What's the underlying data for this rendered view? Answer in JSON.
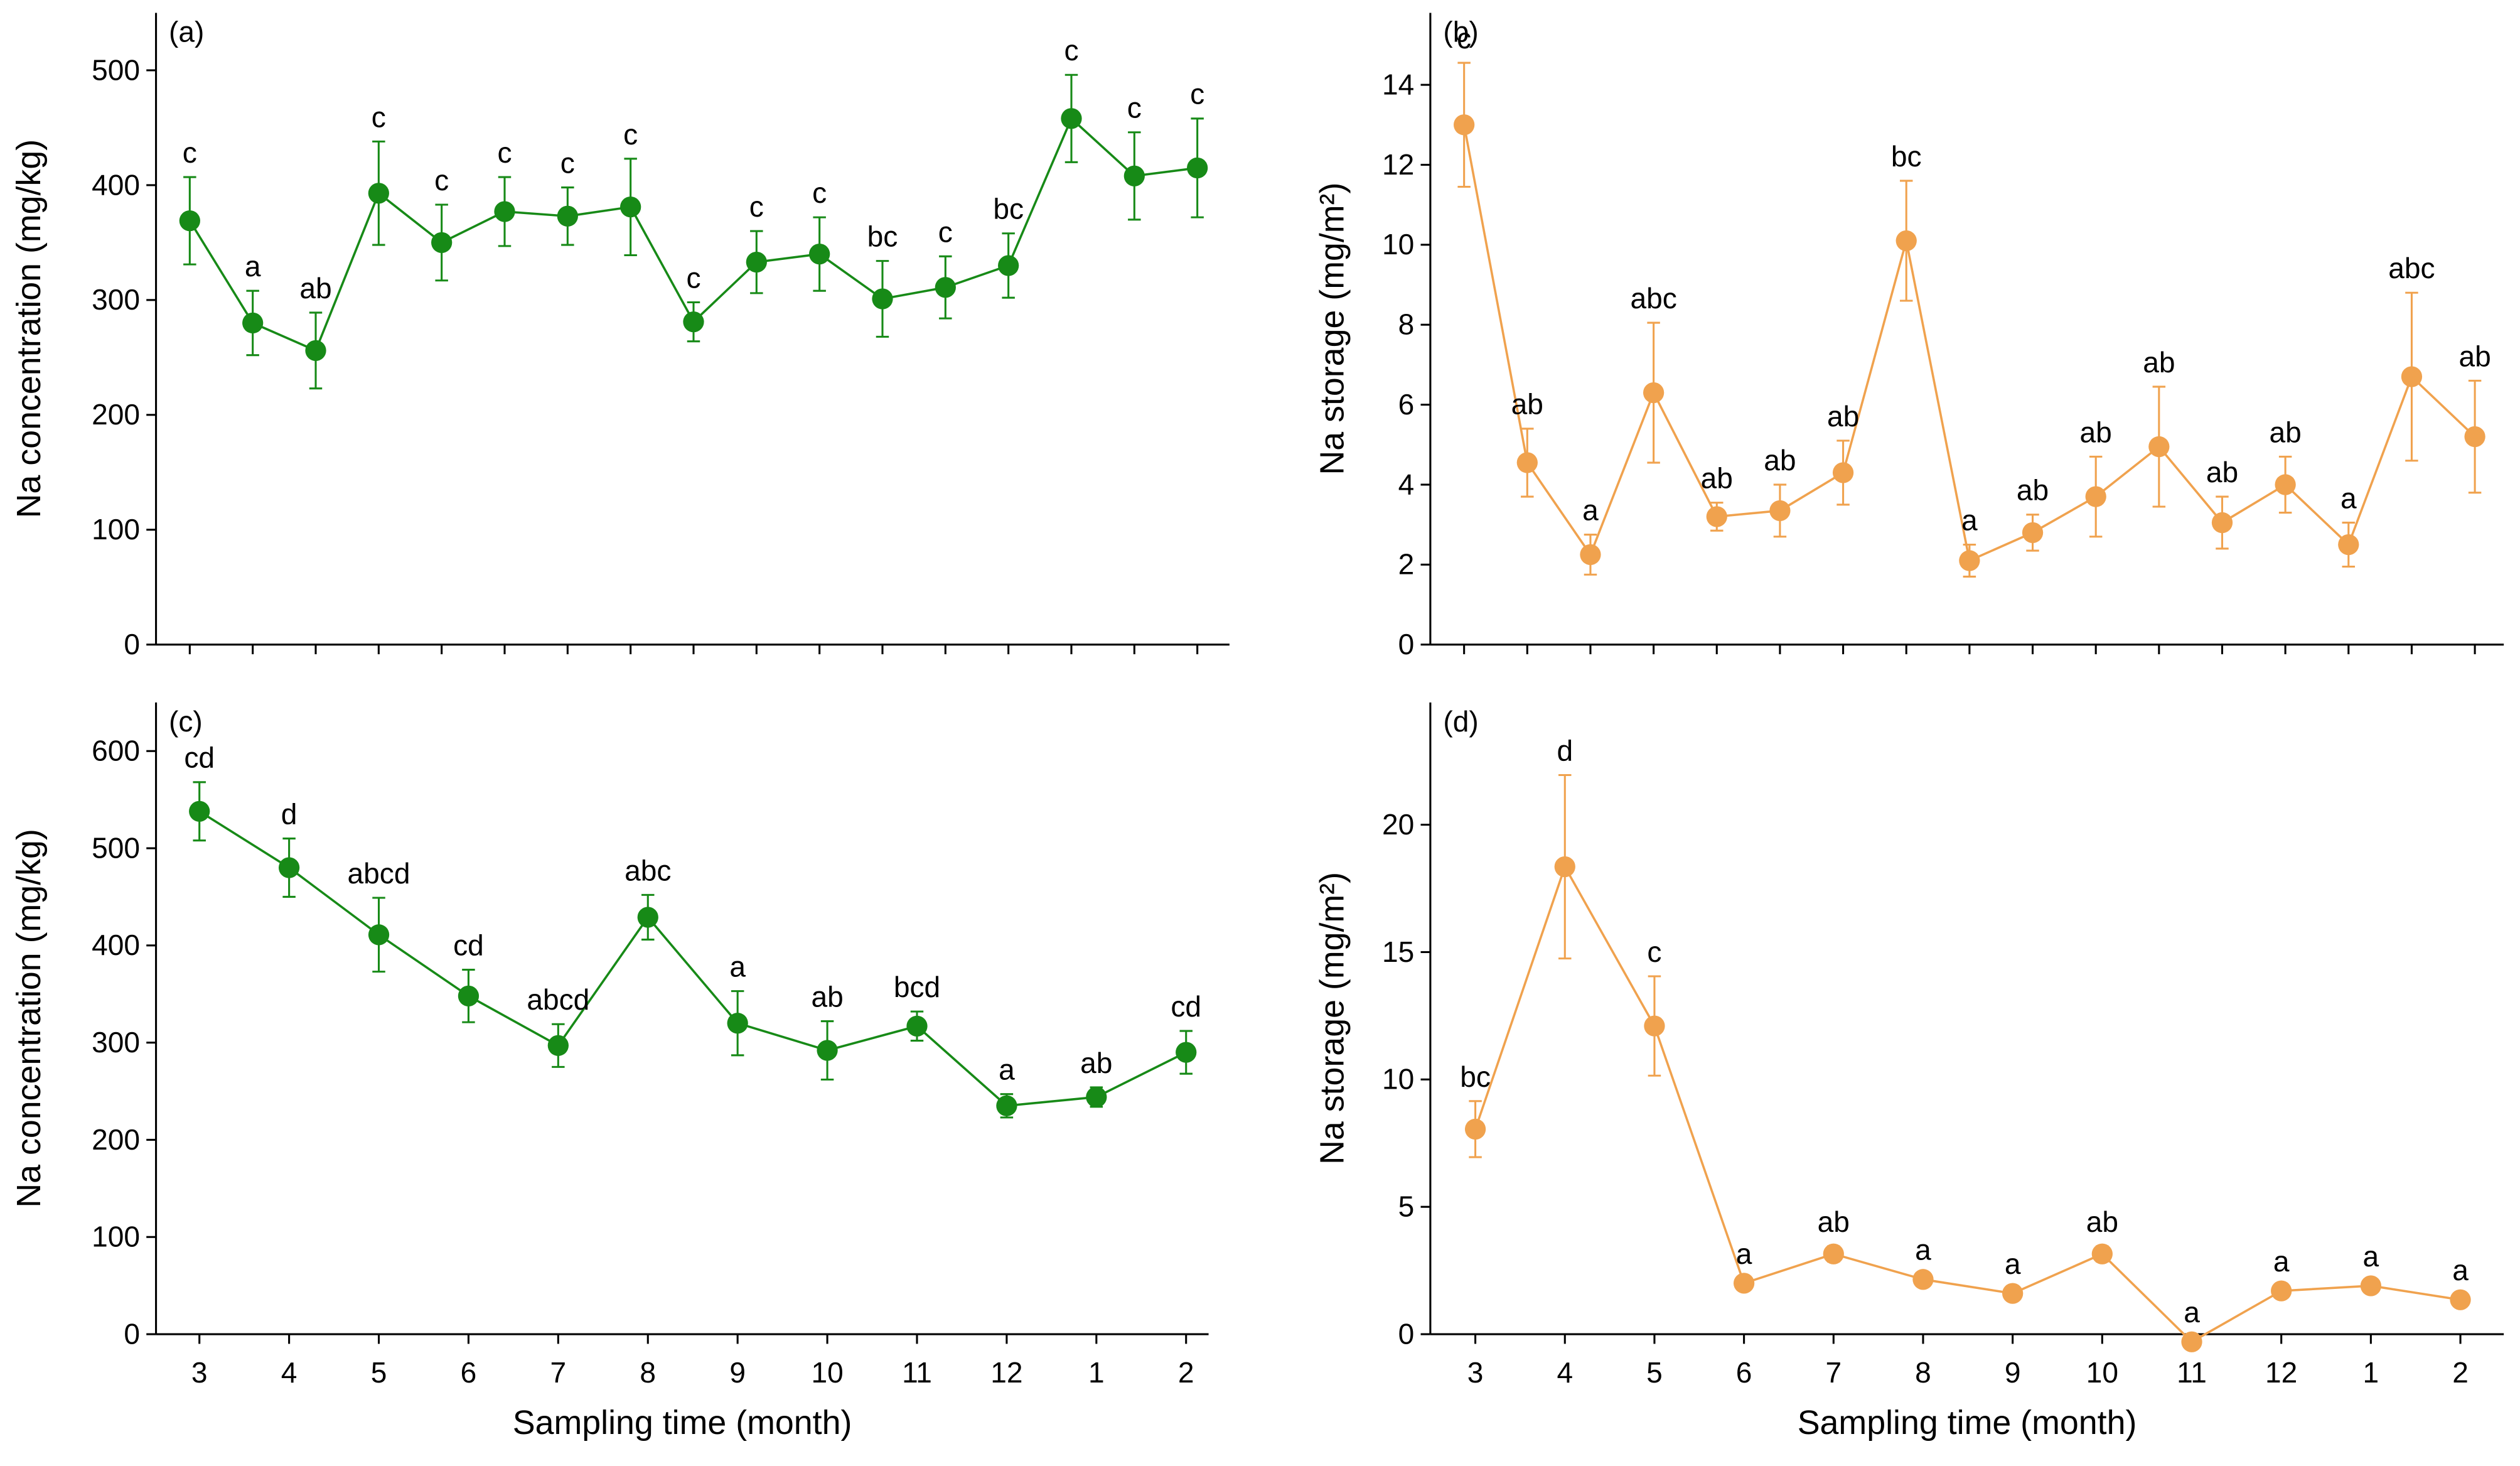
{
  "chart_data": [
    {
      "type": "line",
      "label": "(a)",
      "ylabel": "Na concentration (mg/kg)",
      "categories": [
        null,
        null,
        null,
        null,
        null,
        null,
        null,
        null,
        null,
        null,
        null,
        null,
        null,
        null,
        null,
        null,
        null
      ],
      "ylim": [
        0,
        550
      ],
      "yticks": [
        0,
        100,
        200,
        300,
        400,
        500
      ],
      "series": [
        {
          "color": "#178a17",
          "values": [
            369,
            280,
            256,
            393,
            350,
            377,
            373,
            381,
            281,
            333,
            340,
            301,
            311,
            330,
            458,
            408,
            415
          ],
          "errors": [
            38,
            28,
            33,
            45,
            33,
            30,
            25,
            42,
            17,
            27,
            32,
            33,
            27,
            28,
            38,
            38,
            43
          ],
          "annotations": [
            "c",
            "a",
            "ab",
            "c",
            "c",
            "c",
            "c",
            "c",
            "c",
            "c",
            "c",
            "bc",
            "c",
            "bc",
            "c",
            "c",
            "c"
          ]
        }
      ]
    },
    {
      "type": "line",
      "label": "(b)",
      "ylabel": "Na storage (mg/m²)",
      "categories": [
        null,
        null,
        null,
        null,
        null,
        null,
        null,
        null,
        null,
        null,
        null,
        null,
        null,
        null,
        null,
        null,
        null
      ],
      "ylim": [
        0,
        15.8
      ],
      "yticks": [
        0,
        2,
        4,
        6,
        8,
        10,
        12,
        14
      ],
      "series": [
        {
          "color": "#f0a24e",
          "values": [
            13.0,
            4.55,
            2.25,
            6.3,
            3.2,
            3.35,
            4.3,
            10.1,
            2.1,
            2.8,
            3.7,
            4.95,
            3.05,
            4.0,
            2.5,
            6.7,
            5.2
          ],
          "errors": [
            1.55,
            0.85,
            0.5,
            1.75,
            0.35,
            0.65,
            0.8,
            1.5,
            0.4,
            0.45,
            1.0,
            1.5,
            0.65,
            0.7,
            0.55,
            2.1,
            1.4
          ],
          "annotations": [
            "c",
            "ab",
            "a",
            "abc",
            "ab",
            "ab",
            "ab",
            "bc",
            "a",
            "ab",
            "ab",
            "ab",
            "ab",
            "ab",
            "a",
            "abc",
            "ab"
          ]
        }
      ]
    },
    {
      "type": "line",
      "label": "(c)",
      "ylabel": "Na concentration (mg/kg)",
      "xlabel": "Sampling time (month)",
      "categories": [
        "3",
        "4",
        "5",
        "6",
        "7",
        "8",
        "9",
        "10",
        "11",
        "12",
        "1",
        "2"
      ],
      "ylim": [
        0,
        650
      ],
      "yticks": [
        0,
        100,
        200,
        300,
        400,
        500,
        600
      ],
      "series": [
        {
          "color": "#178a17",
          "values": [
            538,
            480,
            411,
            348,
            297,
            429,
            320,
            292,
            317,
            235,
            244,
            290
          ],
          "errors": [
            30,
            30,
            38,
            27,
            22,
            23,
            33,
            30,
            15,
            12,
            10,
            22
          ],
          "annotations": [
            "cd",
            "d",
            "abcd",
            "cd",
            "abcd",
            "abc",
            "a",
            "ab",
            "bcd",
            "a",
            "ab",
            "cd"
          ]
        }
      ]
    },
    {
      "type": "line",
      "label": "(d)",
      "ylabel": "Na storage (mg/m²)",
      "xlabel": "Sampling time (month)",
      "categories": [
        "3",
        "4",
        "5",
        "6",
        "7",
        "8",
        "9",
        "10",
        "11",
        "12",
        "1",
        "2"
      ],
      "ylim": [
        0,
        24.8
      ],
      "yticks": [
        0,
        5,
        10,
        15,
        20
      ],
      "series": [
        {
          "color": "#f0a24e",
          "values": [
            8.05,
            18.35,
            12.1,
            2.0,
            3.15,
            2.15,
            1.6,
            3.15,
            -0.3,
            1.7,
            1.9,
            1.35
          ],
          "errors": [
            1.1,
            3.6,
            1.95,
            0.2,
            0.3,
            0.2,
            0.2,
            0.3,
            0.2,
            0.2,
            0.2,
            0.2
          ],
          "annotations": [
            "bc",
            "d",
            "c",
            "a",
            "ab",
            "a",
            "a",
            "ab",
            "a",
            "a",
            "a",
            "a"
          ]
        }
      ]
    }
  ]
}
